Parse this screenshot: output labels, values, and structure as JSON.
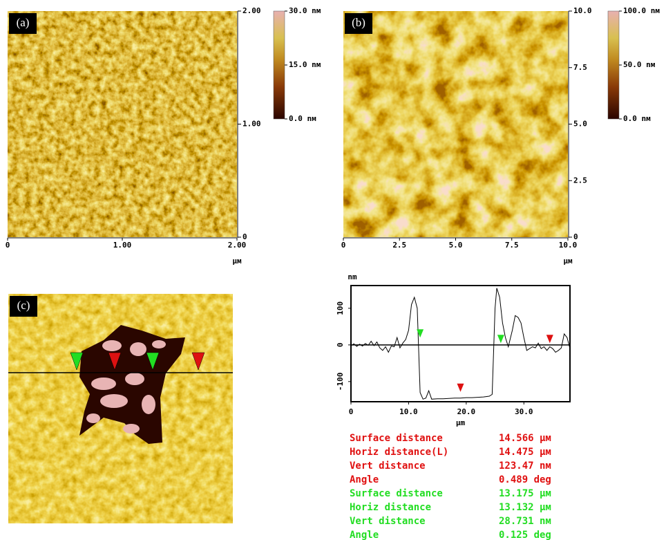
{
  "panels": [
    {
      "label": "(a)",
      "xticks": [
        "0",
        "1.00",
        "2.00"
      ],
      "yticks": [
        "0",
        "1.00",
        "2.00"
      ],
      "unit": "μм",
      "colorbar": [
        "30.0 nм",
        "15.0 nм",
        "0.0 nм"
      ]
    },
    {
      "label": "(b)",
      "xticks": [
        "0",
        "2.5",
        "5.0",
        "7.5",
        "10.0"
      ],
      "yticks": [
        "0",
        "2.5",
        "5.0",
        "7.5",
        "10.0"
      ],
      "unit": "μм",
      "colorbar": [
        "100.0 nм",
        "50.0 nм",
        "0.0 nм"
      ]
    },
    {
      "label": "(c)"
    }
  ],
  "chart_data": {
    "type": "line",
    "y_label": "nm",
    "x_label": "μm",
    "xlim": [
      0,
      38
    ],
    "ylim": [
      -155,
      162
    ],
    "xticks": [
      0,
      {
        "value": 10,
        "label": "10.0"
      },
      {
        "value": 20,
        "label": "20.0"
      },
      {
        "value": 30,
        "label": "30.0"
      }
    ],
    "yticks": [
      -100,
      0,
      100
    ],
    "x": [
      0,
      0.5,
      1,
      1.5,
      2,
      2.5,
      3,
      3.5,
      4,
      4.5,
      5,
      5.5,
      6,
      6.5,
      7,
      7.5,
      8,
      8.5,
      9,
      9.5,
      10,
      10.5,
      11,
      11.5,
      12,
      12.5,
      13,
      13.5,
      14,
      15,
      16,
      17,
      18,
      19,
      20,
      21,
      22,
      23,
      24,
      24.5,
      25,
      25.3,
      25.8,
      26.3,
      26.8,
      27.3,
      28,
      28.5,
      29,
      29.5,
      30,
      30.5,
      31,
      31.5,
      32,
      32.5,
      33,
      33.5,
      34,
      34.5,
      35,
      35.5,
      36,
      36.5,
      37,
      37.5,
      38
    ],
    "series": [
      {
        "color": "#000000",
        "values": [
          -2,
          3,
          -4,
          2,
          -3,
          4,
          -1,
          10,
          -2,
          8,
          -8,
          -15,
          -5,
          -20,
          -3,
          -5,
          20,
          -8,
          5,
          15,
          40,
          110,
          130,
          100,
          -130,
          -148,
          -145,
          -125,
          -148,
          -147,
          -147,
          -146,
          -145,
          -145,
          -144,
          -144,
          -143,
          -142,
          -140,
          -135,
          100,
          155,
          130,
          60,
          20,
          -5,
          40,
          80,
          75,
          60,
          20,
          -15,
          -10,
          -5,
          -8,
          5,
          -10,
          -5,
          -15,
          -5,
          -10,
          -20,
          -15,
          -8,
          30,
          20,
          -10
        ]
      }
    ],
    "cursors": [
      {
        "x": 12,
        "y": 20,
        "color": "#22dd22"
      },
      {
        "x": 19,
        "y": -128,
        "color": "#dd1111"
      },
      {
        "x": 26,
        "y": 5,
        "color": "#22dd22"
      },
      {
        "x": 34.5,
        "y": 5,
        "color": "#dd1111"
      }
    ]
  },
  "measurements": [
    {
      "label": "Surface distance",
      "value": "14.566 μм",
      "color": "#e01010"
    },
    {
      "label": "Horiz distance(L)",
      "value": "14.475 μм",
      "color": "#e01010"
    },
    {
      "label": "Vert distance",
      "value": "123.47 nм",
      "color": "#e01010"
    },
    {
      "label": "Angle",
      "value": "0.489 deg",
      "color": "#e01010"
    },
    {
      "label": "Surface distance",
      "value": "13.175 μм",
      "color": "#22dd22"
    },
    {
      "label": "Horiz distance",
      "value": "13.132 μм",
      "color": "#22dd22"
    },
    {
      "label": "Vert distance",
      "value": "28.731 nм",
      "color": "#22dd22"
    },
    {
      "label": "Angle",
      "value": "0.125 deg",
      "color": "#22dd22"
    }
  ]
}
